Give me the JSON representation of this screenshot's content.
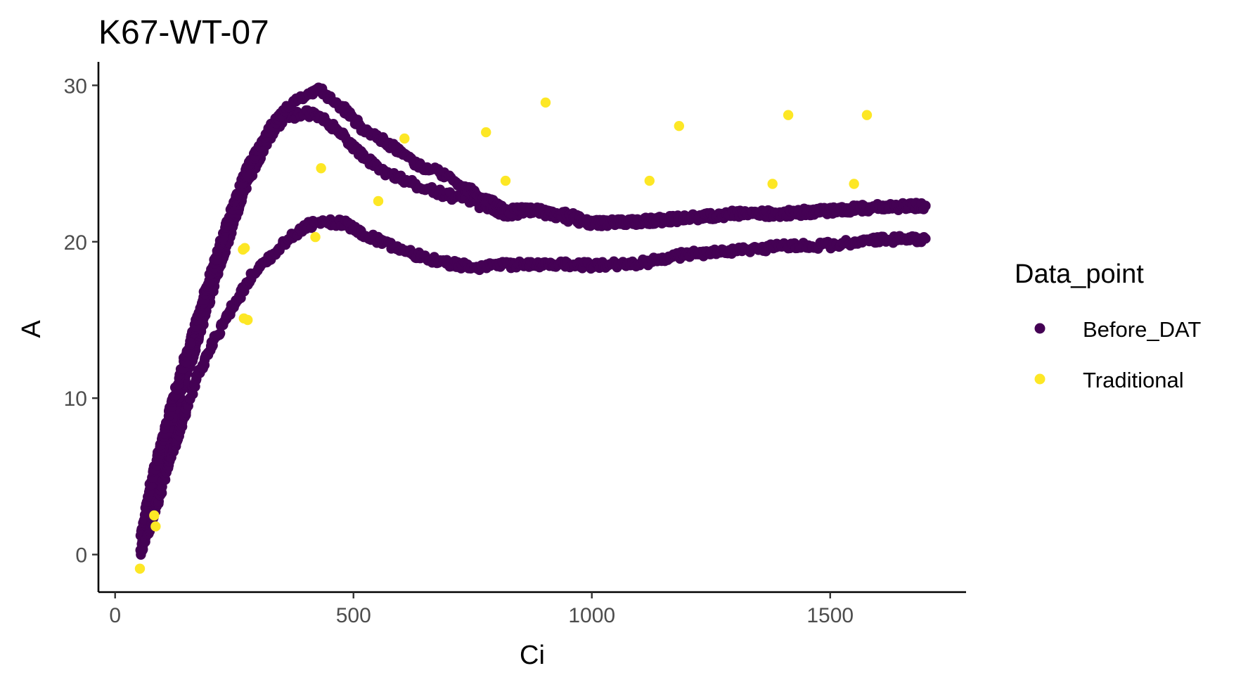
{
  "chart_data": {
    "type": "scatter",
    "title": "K67-WT-07",
    "xlabel": "Ci",
    "ylabel": "A",
    "xlim": [
      -35,
      1785
    ],
    "ylim": [
      -2.4,
      31.5
    ],
    "x_ticks": [
      0,
      500,
      1000,
      1500
    ],
    "y_ticks": [
      0,
      10,
      20,
      30
    ],
    "x_tick_labels": [
      "0",
      "500",
      "1000",
      "1500"
    ],
    "y_tick_labels": [
      "0",
      "10",
      "20",
      "30"
    ],
    "grid": false,
    "legend": {
      "title": "Data_point",
      "position": "right"
    },
    "series": [
      {
        "name": "Before_DAT",
        "color": "#440154",
        "curves": [
          [
            [
              55,
              0.5
            ],
            [
              75,
              3.5
            ],
            [
              100,
              6.5
            ],
            [
              130,
              9.5
            ],
            [
              160,
              12.5
            ],
            [
              190,
              15.5
            ],
            [
              220,
              18.5
            ],
            [
              250,
              21.5
            ],
            [
              280,
              24
            ],
            [
              320,
              26.5
            ],
            [
              360,
              28
            ],
            [
              400,
              28.2
            ],
            [
              430,
              28
            ],
            [
              470,
              27
            ],
            [
              520,
              25.5
            ],
            [
              560,
              24.5
            ],
            [
              600,
              24
            ],
            [
              660,
              23.3
            ],
            [
              720,
              22.8
            ],
            [
              770,
              22.3
            ],
            [
              820,
              21.8
            ],
            [
              880,
              22
            ],
            [
              950,
              21.5
            ],
            [
              1000,
              21.2
            ],
            [
              1100,
              21.3
            ],
            [
              1200,
              21.5
            ],
            [
              1300,
              21.8
            ],
            [
              1400,
              21.8
            ],
            [
              1500,
              22
            ],
            [
              1600,
              22.2
            ],
            [
              1700,
              22.3
            ]
          ],
          [
            [
              55,
              1.2
            ],
            [
              75,
              4.5
            ],
            [
              100,
              7.5
            ],
            [
              130,
              10.8
            ],
            [
              160,
              13.8
            ],
            [
              190,
              16.8
            ],
            [
              220,
              19.8
            ],
            [
              250,
              22.5
            ],
            [
              280,
              24.8
            ],
            [
              320,
              27
            ],
            [
              360,
              28.6
            ],
            [
              400,
              29.3
            ],
            [
              430,
              29.7
            ],
            [
              470,
              28.8
            ],
            [
              520,
              27.2
            ],
            [
              560,
              26.5
            ],
            [
              600,
              25.7
            ],
            [
              640,
              24.8
            ],
            [
              680,
              24.5
            ],
            [
              720,
              23.8
            ],
            [
              770,
              22.8
            ],
            [
              820,
              22
            ],
            [
              880,
              22
            ],
            [
              950,
              21.7
            ],
            [
              1000,
              21.2
            ],
            [
              1100,
              21.3
            ],
            [
              1200,
              21.5
            ],
            [
              1300,
              21.8
            ],
            [
              1400,
              21.8
            ],
            [
              1500,
              22
            ],
            [
              1600,
              22.2
            ],
            [
              1700,
              22.3
            ]
          ],
          [
            [
              55,
              0.2
            ],
            [
              80,
              2.5
            ],
            [
              110,
              5.5
            ],
            [
              140,
              8.5
            ],
            [
              170,
              11.2
            ],
            [
              200,
              13.2
            ],
            [
              230,
              15
            ],
            [
              260,
              16.5
            ],
            [
              290,
              18
            ],
            [
              330,
              19.2
            ],
            [
              370,
              20.3
            ],
            [
              400,
              21
            ],
            [
              440,
              21.3
            ],
            [
              480,
              21.2
            ],
            [
              520,
              20.5
            ],
            [
              560,
              20
            ],
            [
              600,
              19.5
            ],
            [
              650,
              19
            ],
            [
              700,
              18.6
            ],
            [
              760,
              18.4
            ],
            [
              820,
              18.5
            ],
            [
              900,
              18.6
            ],
            [
              1000,
              18.5
            ],
            [
              1100,
              18.6
            ],
            [
              1200,
              19.2
            ],
            [
              1300,
              19.4
            ],
            [
              1400,
              19.7
            ],
            [
              1500,
              19.8
            ],
            [
              1600,
              20.1
            ],
            [
              1700,
              20.2
            ]
          ]
        ]
      },
      {
        "name": "Traditional",
        "color": "#FDE725",
        "points": [
          [
            52,
            -0.9
          ],
          [
            82,
            2.5
          ],
          [
            85,
            1.8
          ],
          [
            268,
            19.5
          ],
          [
            272,
            19.6
          ],
          [
            270,
            15.1
          ],
          [
            278,
            15
          ],
          [
            420,
            20.3
          ],
          [
            432,
            24.7
          ],
          [
            552,
            22.6
          ],
          [
            607,
            26.6
          ],
          [
            778,
            27
          ],
          [
            819,
            23.9
          ],
          [
            903,
            28.9
          ],
          [
            1121,
            23.9
          ],
          [
            1183,
            27.4
          ],
          [
            1379,
            23.7
          ],
          [
            1412,
            28.1
          ],
          [
            1550,
            23.7
          ],
          [
            1577,
            28.1
          ]
        ]
      }
    ]
  }
}
